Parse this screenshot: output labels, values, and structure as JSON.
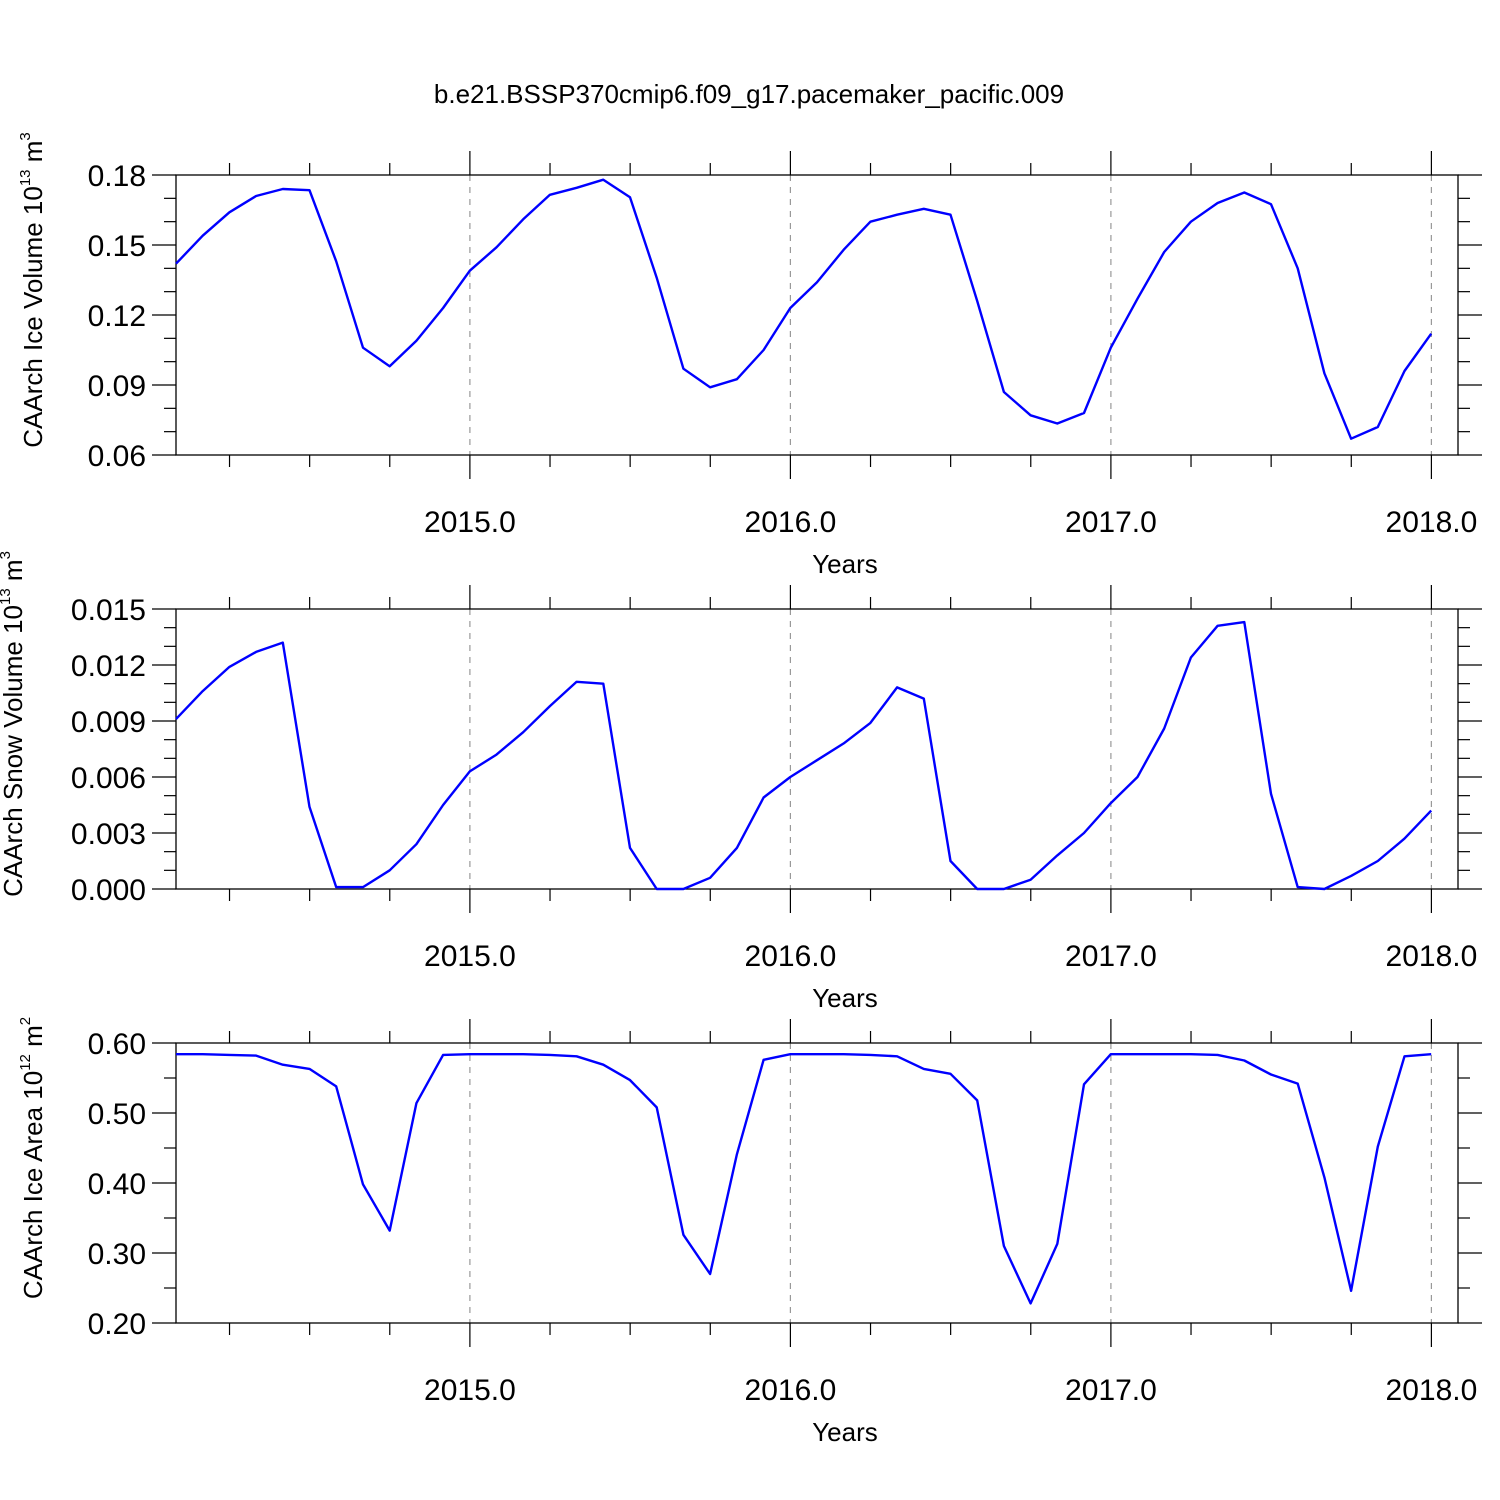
{
  "title": "b.e21.BSSP370cmip6.f09_g17.pacemaker_pacific.009",
  "colors": {
    "line": "#0000ff",
    "axis": "#000000",
    "grid": "#999999"
  },
  "chart_data": [
    {
      "type": "line",
      "ylabel_main": "CAArch Ice Volume 10",
      "ylabel_exp": "13",
      "ylabel_unit": " m",
      "ylabel_unit_exp": "3",
      "xlabel": "Years",
      "xlim": [
        2014.083,
        2018.083
      ],
      "ylim": [
        0.06,
        0.18
      ],
      "yticks": [
        0.06,
        0.09,
        0.12,
        0.15,
        0.18
      ],
      "ytick_labels": [
        "0.06",
        "0.09",
        "0.12",
        "0.15",
        "0.18"
      ],
      "yminor_step": 0.01,
      "xticks": [
        2015.0,
        2016.0,
        2017.0,
        2018.0
      ],
      "xtick_labels": [
        "2015.0",
        "2016.0",
        "2017.0",
        "2018.0"
      ],
      "grid": "vertical dashed at major x ticks",
      "x_start": 2014.083,
      "x_step": 0.08333,
      "values": [
        0.142,
        0.154,
        0.164,
        0.171,
        0.174,
        0.1735,
        0.143,
        0.106,
        0.098,
        0.109,
        0.123,
        0.139,
        0.149,
        0.161,
        0.1715,
        0.1745,
        0.178,
        0.1705,
        0.136,
        0.097,
        0.089,
        0.0925,
        0.105,
        0.123,
        0.134,
        0.148,
        0.16,
        0.163,
        0.1655,
        0.163,
        0.126,
        0.087,
        0.077,
        0.0735,
        0.078,
        0.106,
        0.127,
        0.147,
        0.16,
        0.168,
        0.1725,
        0.1675,
        0.14,
        0.095,
        0.067,
        0.072,
        0.096,
        0.112
      ]
    },
    {
      "type": "line",
      "ylabel_main": "CAArch Snow Volume 10",
      "ylabel_exp": "13",
      "ylabel_unit": " m",
      "ylabel_unit_exp": "3",
      "xlabel": "Years",
      "xlim": [
        2014.083,
        2018.083
      ],
      "ylim": [
        0.0,
        0.015
      ],
      "yticks": [
        0.0,
        0.003,
        0.006,
        0.009,
        0.012,
        0.015
      ],
      "ytick_labels": [
        "0.000",
        "0.003",
        "0.006",
        "0.009",
        "0.012",
        "0.015"
      ],
      "yminor_step": 0.001,
      "xticks": [
        2015.0,
        2016.0,
        2017.0,
        2018.0
      ],
      "xtick_labels": [
        "2015.0",
        "2016.0",
        "2017.0",
        "2018.0"
      ],
      "grid": "vertical dashed at major x ticks",
      "x_start": 2014.083,
      "x_step": 0.08333,
      "values": [
        0.0091,
        0.0106,
        0.0119,
        0.0127,
        0.0132,
        0.0044,
        0.0001,
        0.0001,
        0.001,
        0.0024,
        0.0045,
        0.0063,
        0.0072,
        0.0084,
        0.0098,
        0.0111,
        0.011,
        0.0022,
        0.0,
        0.0,
        0.0006,
        0.0022,
        0.0049,
        0.006,
        0.0069,
        0.0078,
        0.0089,
        0.0108,
        0.0102,
        0.0015,
        0.0,
        0.0,
        0.0005,
        0.0018,
        0.003,
        0.0046,
        0.006,
        0.0086,
        0.0124,
        0.0141,
        0.0143,
        0.0051,
        0.0001,
        0.0,
        0.0007,
        0.0015,
        0.0027,
        0.0042
      ]
    },
    {
      "type": "line",
      "ylabel_main": "CAArch Ice Area 10",
      "ylabel_exp": "12",
      "ylabel_unit": " m",
      "ylabel_unit_exp": "2",
      "xlabel": "Years",
      "xlim": [
        2014.083,
        2018.083
      ],
      "ylim": [
        0.2,
        0.6
      ],
      "yticks": [
        0.2,
        0.3,
        0.4,
        0.5,
        0.6
      ],
      "ytick_labels": [
        "0.20",
        "0.30",
        "0.40",
        "0.50",
        "0.60"
      ],
      "yminor_step": 0.05,
      "xticks": [
        2015.0,
        2016.0,
        2017.0,
        2018.0
      ],
      "xtick_labels": [
        "2015.0",
        "2016.0",
        "2017.0",
        "2018.0"
      ],
      "grid": "vertical dashed at major x ticks",
      "x_start": 2014.083,
      "x_step": 0.08333,
      "values": [
        0.584,
        0.584,
        0.583,
        0.582,
        0.569,
        0.563,
        0.538,
        0.398,
        0.332,
        0.514,
        0.583,
        0.584,
        0.584,
        0.584,
        0.583,
        0.581,
        0.569,
        0.547,
        0.508,
        0.326,
        0.27,
        0.441,
        0.576,
        0.584,
        0.584,
        0.584,
        0.583,
        0.581,
        0.563,
        0.556,
        0.518,
        0.31,
        0.228,
        0.313,
        0.541,
        0.584,
        0.584,
        0.584,
        0.584,
        0.583,
        0.575,
        0.555,
        0.542,
        0.408,
        0.246,
        0.452,
        0.581,
        0.584
      ]
    }
  ]
}
